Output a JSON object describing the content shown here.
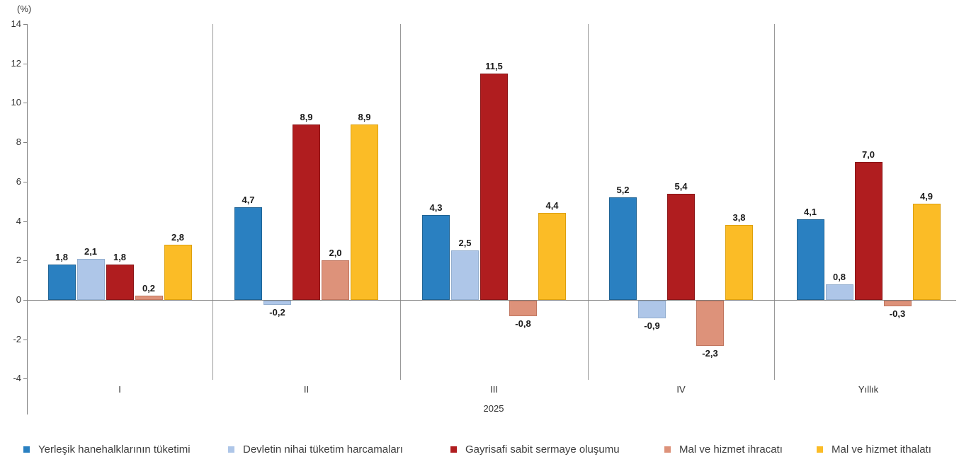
{
  "chart_data": {
    "type": "bar",
    "title": "",
    "ylabel": "(%)",
    "xlabel": "2025",
    "ylim": [
      -4,
      14
    ],
    "ytick_step": 2,
    "yticks": [
      14,
      12,
      10,
      8,
      6,
      4,
      2,
      0,
      -2,
      -4
    ],
    "grid": "off",
    "group_separators": true,
    "legend_position": "bottom",
    "categories": [
      "I",
      "II",
      "III",
      "IV",
      "Yıllık"
    ],
    "series": [
      {
        "name": "Yerleşik hanehalklarının tüketimi",
        "color": "#2A80C1",
        "border": "#1F6394",
        "values": [
          1.8,
          4.7,
          4.3,
          5.2,
          4.1
        ],
        "labels": [
          "1,8",
          "4,7",
          "4,3",
          "5,2",
          "4,1"
        ]
      },
      {
        "name": "Devletin nihai tüketim harcamaları",
        "color": "#AEC6E8",
        "border": "#93AECF",
        "values": [
          2.1,
          -0.2,
          2.5,
          -0.9,
          0.8
        ],
        "labels": [
          "2,1",
          "-0,2",
          "2,5",
          "-0,9",
          "0,8"
        ]
      },
      {
        "name": "Gayrisafi sabit sermaye oluşumu",
        "color": "#B01D1F",
        "border": "#8A1517",
        "values": [
          1.8,
          8.9,
          11.5,
          5.4,
          7.0
        ],
        "labels": [
          "1,8",
          "8,9",
          "11,5",
          "5,4",
          "7,0"
        ]
      },
      {
        "name": "Mal ve hizmet ihracatı",
        "color": "#DD927A",
        "border": "#C0765F",
        "values": [
          0.2,
          2.0,
          -0.8,
          -2.3,
          -0.3
        ],
        "labels": [
          "0,2",
          "2,0",
          "-0,8",
          "-2,3",
          "-0,3"
        ]
      },
      {
        "name": "Mal ve hizmet ithalatı",
        "color": "#FBBC26",
        "border": "#DDA00E",
        "values": [
          2.8,
          8.9,
          4.4,
          3.8,
          4.9
        ],
        "labels": [
          "2,8",
          "8,9",
          "4,4",
          "3,8",
          "4,9"
        ]
      }
    ]
  }
}
